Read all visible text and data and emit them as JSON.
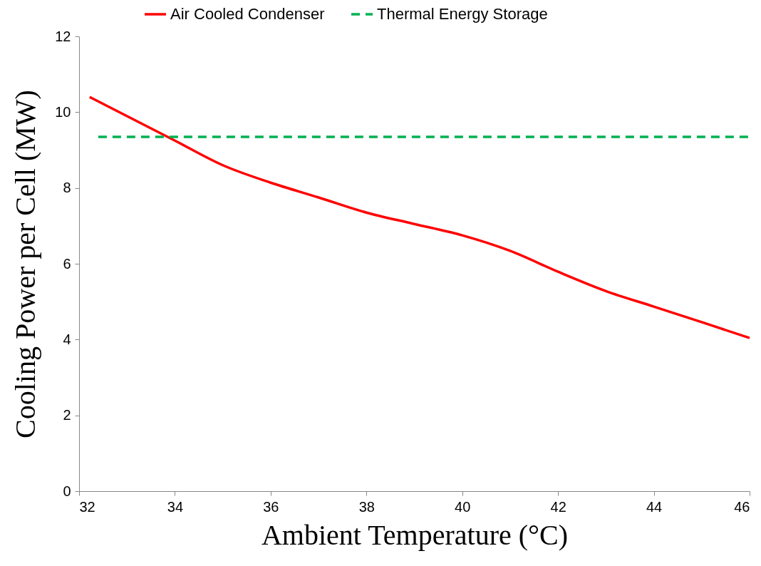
{
  "chart_data": {
    "type": "line",
    "xlabel": "Ambient Temperature (°C)",
    "ylabel": "Cooling Power per Cell (MW)",
    "xlim": [
      32,
      46
    ],
    "xticks": [
      32,
      34,
      36,
      38,
      40,
      42,
      44,
      46
    ],
    "ylim": [
      0,
      12
    ],
    "yticks": [
      0,
      2,
      4,
      6,
      8,
      10,
      12
    ],
    "grid": false,
    "legend": "top",
    "series": [
      {
        "name": "Air Cooled Condenser",
        "color": "#ff0000",
        "line_style": "solid",
        "x": [
          32.22,
          34,
          35,
          36,
          37,
          38,
          39,
          40,
          41,
          42,
          43,
          44,
          45,
          46
        ],
        "values": [
          10.4,
          9.25,
          8.6,
          8.14,
          7.75,
          7.35,
          7.05,
          6.75,
          6.34,
          5.79,
          5.28,
          4.87,
          4.46,
          4.04
        ]
      },
      {
        "name": "Thermal Energy Storage",
        "color": "#00b050",
        "line_style": "dashed",
        "x": [
          32.4,
          46
        ],
        "values": [
          9.35,
          9.35
        ]
      }
    ]
  }
}
